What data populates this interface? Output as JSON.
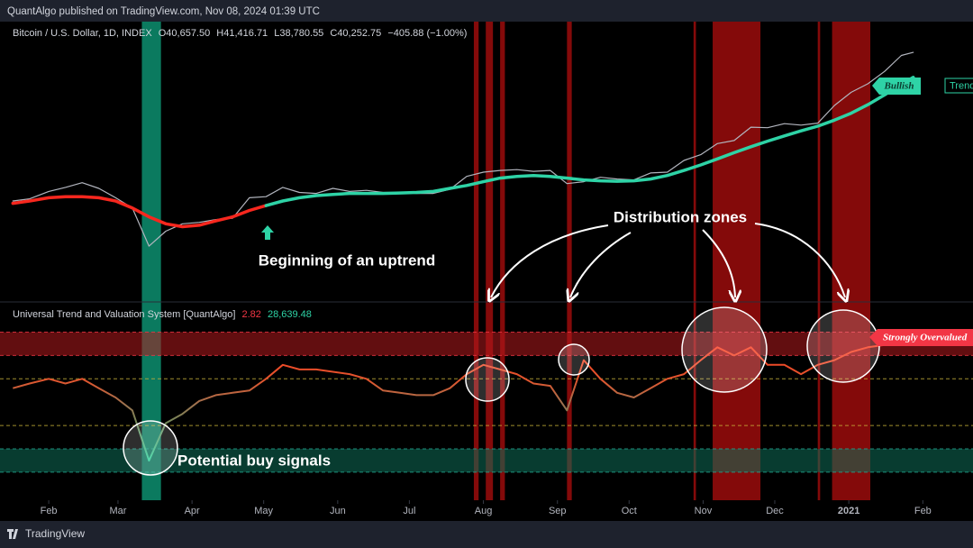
{
  "header": {
    "publisher": "QuantAlgo published on TradingView.com, Nov 08, 2024 01:39 UTC",
    "brand": "TradingView"
  },
  "chart_data": [
    {
      "type": "line",
      "title": "Bitcoin / U.S. Dollar, 1D, INDEX",
      "ohlc": [
        "O40,657.50",
        "H41,416.71",
        "L38,780.55",
        "C40,252.75",
        "−405.88 (−1.00%)"
      ],
      "log_scale": true,
      "ylim": [
        3100,
        55000
      ],
      "xlim": [
        -20.4,
        387
      ],
      "xticks": [
        {
          "value": 0,
          "label": "Feb"
        },
        {
          "value": 29,
          "label": "Mar"
        },
        {
          "value": 60,
          "label": "Apr"
        },
        {
          "value": 90,
          "label": "May"
        },
        {
          "value": 121,
          "label": "Jun"
        },
        {
          "value": 151,
          "label": "Jul"
        },
        {
          "value": 182,
          "label": "Aug"
        },
        {
          "value": 213,
          "label": "Sep"
        },
        {
          "value": 243,
          "label": "Oct"
        },
        {
          "value": 274,
          "label": "Nov"
        },
        {
          "value": 304,
          "label": "Dec"
        },
        {
          "value": 335,
          "label": "2021"
        },
        {
          "value": 366,
          "label": "Feb"
        }
      ],
      "x": [
        -15,
        -8,
        0,
        7,
        14,
        21,
        28,
        35,
        42,
        49,
        56,
        63,
        70,
        77,
        84,
        91,
        98,
        105,
        112,
        119,
        126,
        133,
        140,
        147,
        154,
        161,
        168,
        175,
        182,
        189,
        196,
        203,
        210,
        217,
        224,
        231,
        238,
        245,
        252,
        259,
        266,
        273,
        280,
        287,
        294,
        301,
        308,
        315,
        322,
        329,
        336,
        343,
        350,
        357,
        362
      ],
      "series": [
        {
          "color": "#b2b5be",
          "values": [
            8500,
            8700,
            9400,
            9800,
            10300,
            9700,
            8800,
            7900,
            5300,
            6200,
            6700,
            6800,
            7000,
            7100,
            8800,
            8900,
            9800,
            9300,
            9200,
            9700,
            9400,
            9500,
            9300,
            9300,
            9200,
            9200,
            9600,
            11000,
            11500,
            11700,
            11800,
            11600,
            11700,
            10200,
            10400,
            10900,
            10700,
            10600,
            11400,
            11500,
            13000,
            13800,
            15500,
            16000,
            18400,
            18300,
            19100,
            18800,
            19200,
            23100,
            26500,
            29000,
            33000,
            39000,
            40250
          ]
        },
        {
          "color": "#f7271e",
          "values": [
            8300,
            8500,
            8800,
            8900,
            8900,
            8800,
            8500,
            7900,
            7200,
            6700,
            6500,
            6600,
            6900,
            7200,
            7700,
            8100,
            null,
            null,
            null,
            null,
            null,
            null,
            null,
            null,
            null,
            null,
            null,
            null,
            null,
            null,
            null,
            null,
            null,
            null,
            null,
            null,
            null,
            null,
            null,
            null,
            null,
            null,
            null,
            null,
            null,
            null,
            null,
            null,
            null,
            null,
            null,
            null,
            null,
            null,
            null
          ]
        },
        {
          "color": "#2ed3a6",
          "values": [
            null,
            null,
            null,
            null,
            null,
            null,
            null,
            null,
            null,
            null,
            null,
            null,
            null,
            null,
            null,
            8100,
            8500,
            8800,
            9000,
            9100,
            9200,
            9200,
            9200,
            9250,
            9300,
            9400,
            9700,
            10000,
            10400,
            10800,
            11000,
            11100,
            11000,
            10800,
            10600,
            10500,
            10450,
            10500,
            10700,
            11100,
            11700,
            12400,
            13200,
            14100,
            15000,
            15900,
            16800,
            17700,
            18600,
            19800,
            21300,
            23300,
            25800,
            28800,
            31000
          ]
        }
      ],
      "zones": [
        {
          "start": 39,
          "end": 47,
          "color": "#0fa37f"
        },
        {
          "start": 178,
          "end": 180,
          "color": "#b00d0d"
        },
        {
          "start": 183,
          "end": 186,
          "color": "#b00d0d"
        },
        {
          "start": 189,
          "end": 191,
          "color": "#b00d0d"
        },
        {
          "start": 217,
          "end": 219,
          "color": "#b00d0d"
        },
        {
          "start": 270,
          "end": 271,
          "color": "#b00d0d"
        },
        {
          "start": 278,
          "end": 298,
          "color": "#b00d0d"
        },
        {
          "start": 322,
          "end": 323,
          "color": "#b00d0d"
        },
        {
          "start": 328,
          "end": 344,
          "color": "#b00d0d"
        }
      ],
      "annotations": [
        "Beginning of an uptrend",
        "Distribution zones",
        "Bullish",
        "Trend"
      ]
    },
    {
      "type": "line",
      "title": "Universal Trend and Valuation System [QuantAlgo]",
      "readouts": [
        "2.82",
        "28,639.48"
      ],
      "ylim": [
        -4.2,
        4.1
      ],
      "x": [
        -15,
        -8,
        0,
        7,
        14,
        21,
        28,
        35,
        42,
        49,
        56,
        63,
        70,
        77,
        84,
        91,
        98,
        105,
        112,
        119,
        126,
        133,
        140,
        147,
        154,
        161,
        168,
        175,
        182,
        189,
        196,
        203,
        210,
        217,
        224,
        231,
        238,
        245,
        252,
        259,
        266,
        273,
        280,
        287,
        294,
        301,
        308,
        315,
        322,
        329,
        336,
        343,
        350,
        357,
        362
      ],
      "values": [
        0.6,
        0.8,
        1.0,
        0.8,
        1.0,
        0.6,
        0.2,
        -0.35,
        -2.5,
        -0.9,
        -0.5,
        0.05,
        0.3,
        0.4,
        0.5,
        1.0,
        1.6,
        1.4,
        1.4,
        1.3,
        1.2,
        1.0,
        0.5,
        0.4,
        0.3,
        0.3,
        0.6,
        1.2,
        1.6,
        1.4,
        1.2,
        0.8,
        0.7,
        -0.35,
        1.8,
        1.0,
        0.4,
        0.2,
        0.6,
        1.0,
        1.2,
        1.8,
        2.35,
        2.0,
        2.35,
        1.6,
        1.6,
        1.2,
        1.6,
        1.8,
        2.15,
        2.35,
        2.45,
        2.6,
        2.82
      ],
      "bands": [
        {
          "from": 2,
          "to": 3,
          "color": "#b2191e"
        },
        {
          "from": -3,
          "to": -2,
          "color": "#0e6e58"
        }
      ],
      "levels": [
        3,
        2,
        1,
        -1,
        -2,
        -3
      ],
      "level_colors": [
        "#f23645",
        "#f23645",
        "#c9b23a",
        "#c9b23a",
        "#22ab94",
        "#22ab94"
      ],
      "annotations": [
        "Strongly Overvalued",
        "Potential buy signals"
      ]
    }
  ]
}
